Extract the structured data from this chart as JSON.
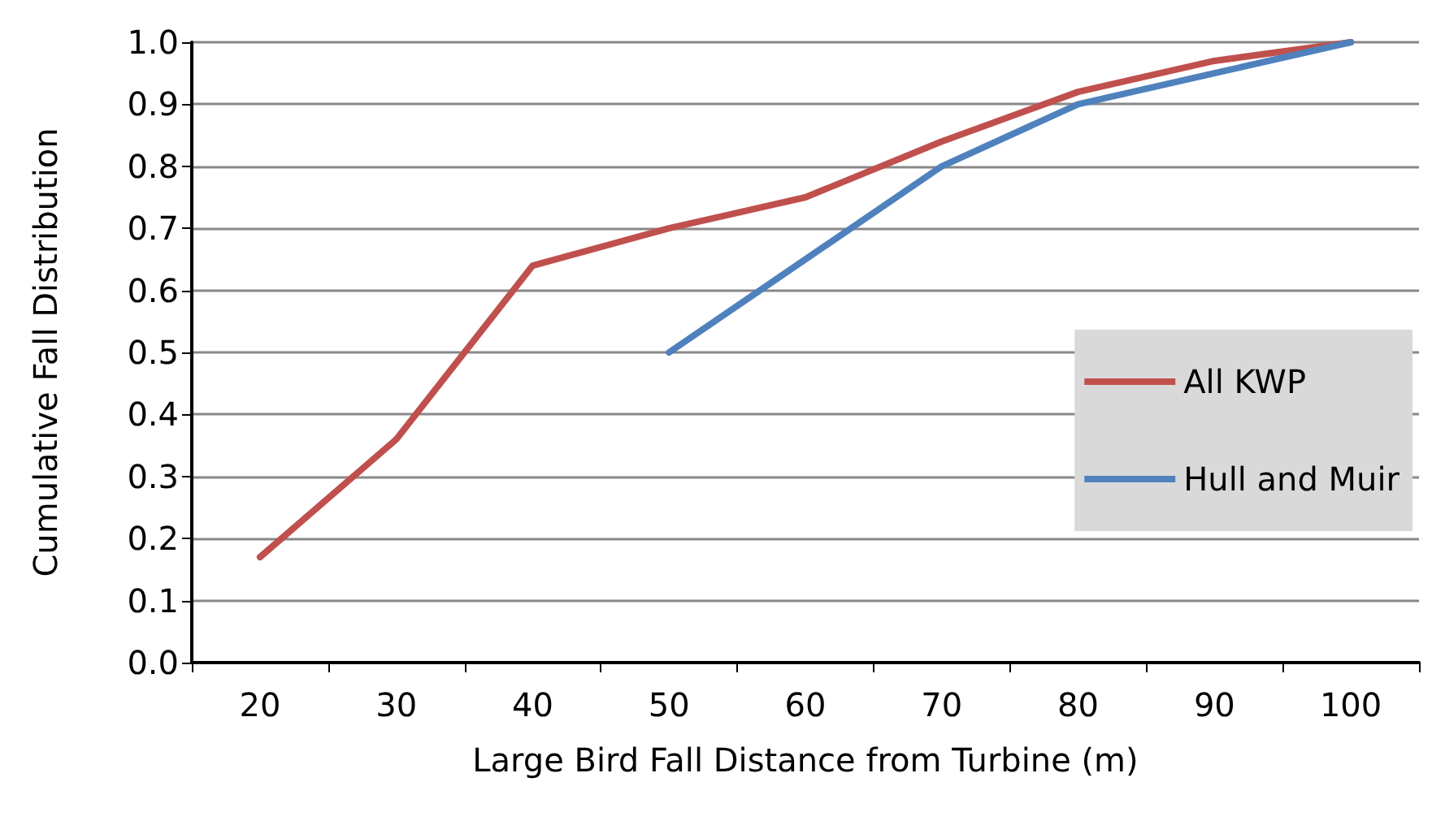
{
  "chart_data": {
    "type": "line",
    "xlabel": "Large Bird Fall Distance from Turbine (m)",
    "ylabel": "Cumulative Fall Distribution",
    "categories": [
      "20",
      "30",
      "40",
      "50",
      "60",
      "70",
      "80",
      "90",
      "100"
    ],
    "series": [
      {
        "name": "All KWP",
        "color": "#c0504d",
        "values": [
          0.17,
          0.36,
          0.64,
          0.7,
          0.75,
          0.84,
          0.92,
          0.97,
          1.0
        ]
      },
      {
        "name": "Hull and Muir",
        "color": "#4f81bd",
        "values": [
          null,
          null,
          null,
          0.5,
          0.65,
          0.8,
          0.9,
          0.95,
          1.0
        ]
      }
    ],
    "ylim": [
      0,
      1
    ],
    "yticks": [
      {
        "value": 0,
        "label": "0.0"
      },
      {
        "value": 0.1,
        "label": "0.1"
      },
      {
        "value": 0.2,
        "label": "0.2"
      },
      {
        "value": 0.3,
        "label": "0.3"
      },
      {
        "value": 0.4,
        "label": "0.4"
      },
      {
        "value": 0.5,
        "label": "0.5"
      },
      {
        "value": 0.6,
        "label": "0.6"
      },
      {
        "value": 0.7,
        "label": "0.7"
      },
      {
        "value": 0.8,
        "label": "0.8"
      },
      {
        "value": 0.9,
        "label": "0.9"
      },
      {
        "value": 1,
        "label": "1.0"
      }
    ],
    "grid": "y",
    "legend": "right",
    "marker": "none",
    "line_style": "solid"
  }
}
